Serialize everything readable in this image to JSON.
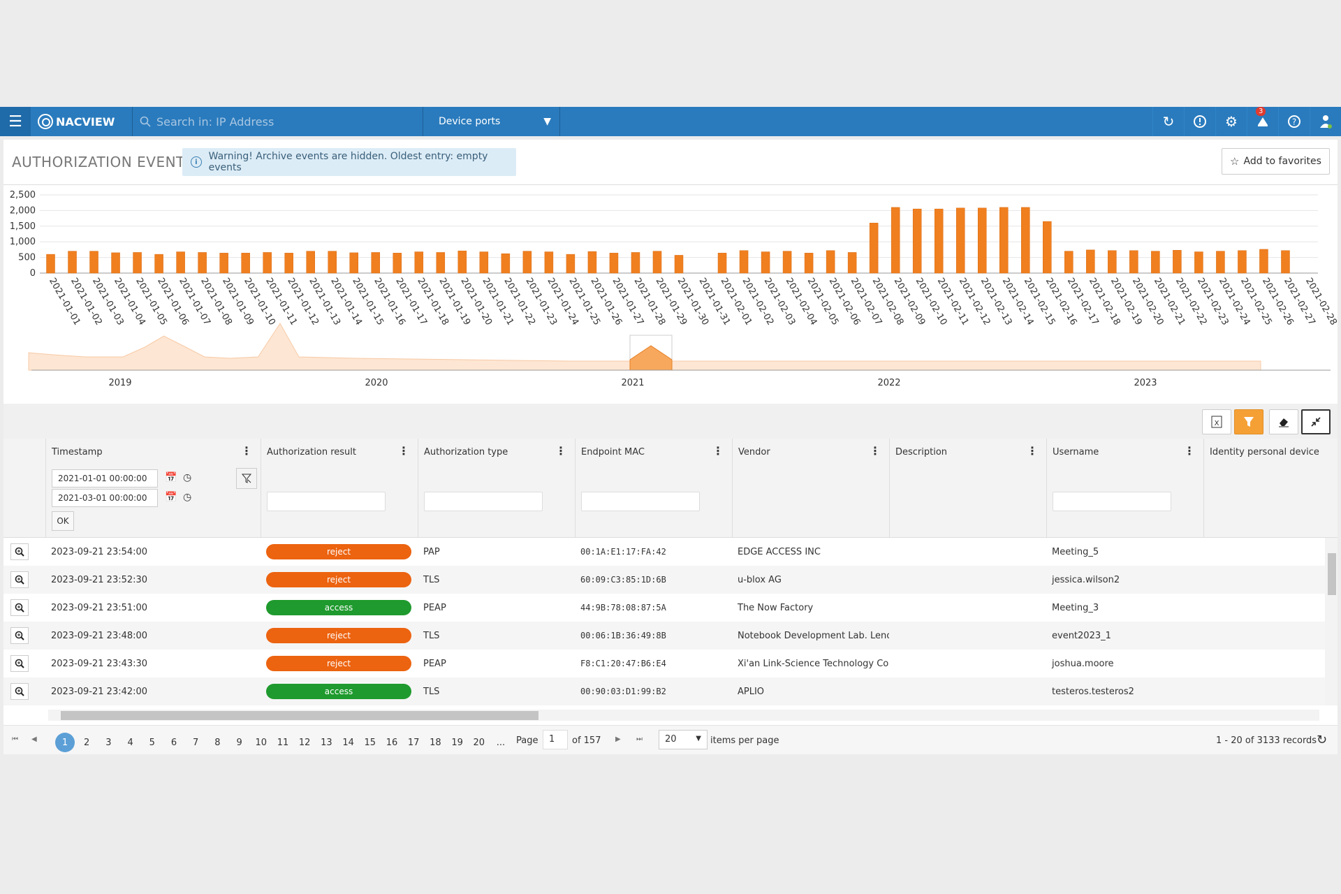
{
  "topbar": {
    "brand": "NACVIEW",
    "search_placeholder": "Search in: IP Address",
    "select_value": "Device ports",
    "notification_count": "3"
  },
  "page": {
    "title": "AUTHORIZATION EVENTS",
    "warning": "Warning! Archive events are hidden. Oldest entry: empty events",
    "favorites_label": "Add to favorites"
  },
  "chart_data": {
    "type": "bar",
    "categories": [
      "2021-01-01",
      "2021-01-02",
      "2021-01-03",
      "2021-01-04",
      "2021-01-05",
      "2021-01-06",
      "2021-01-07",
      "2021-01-08",
      "2021-01-09",
      "2021-01-10",
      "2021-01-11",
      "2021-01-12",
      "2021-01-13",
      "2021-01-14",
      "2021-01-15",
      "2021-01-16",
      "2021-01-17",
      "2021-01-18",
      "2021-01-19",
      "2021-01-20",
      "2021-01-21",
      "2021-01-22",
      "2021-01-23",
      "2021-01-24",
      "2021-01-25",
      "2021-01-26",
      "2021-01-27",
      "2021-01-28",
      "2021-01-29",
      "2021-01-30",
      "2021-01-31",
      "2021-02-01",
      "2021-02-02",
      "2021-02-03",
      "2021-02-04",
      "2021-02-05",
      "2021-02-06",
      "2021-02-07",
      "2021-02-08",
      "2021-02-09",
      "2021-02-10",
      "2021-02-11",
      "2021-02-12",
      "2021-02-13",
      "2021-02-14",
      "2021-02-15",
      "2021-02-16",
      "2021-02-17",
      "2021-02-18",
      "2021-02-19",
      "2021-02-20",
      "2021-02-21",
      "2021-02-22",
      "2021-02-23",
      "2021-02-24",
      "2021-02-25",
      "2021-02-26",
      "2021-02-27",
      "2021-02-28"
    ],
    "values": [
      600,
      700,
      700,
      650,
      660,
      600,
      680,
      660,
      640,
      640,
      660,
      640,
      700,
      700,
      650,
      660,
      640,
      680,
      660,
      710,
      680,
      620,
      700,
      680,
      600,
      690,
      640,
      660,
      700,
      570,
      0,
      640,
      720,
      680,
      700,
      640,
      720,
      660,
      1600,
      2100,
      2050,
      2050,
      2080,
      2080,
      2100,
      2100,
      1650,
      700,
      740,
      720,
      720,
      700,
      730,
      680,
      700,
      720,
      760,
      720,
      0
    ],
    "ylim": [
      0,
      2500
    ],
    "yticks": [
      "0",
      "500",
      "1,000",
      "1,500",
      "2,000",
      "2,500"
    ],
    "navigator_labels": [
      "2019",
      "2020",
      "2021",
      "2022",
      "2023"
    ],
    "color": "#f07f1f"
  },
  "grid": {
    "columns": [
      "Timestamp",
      "Authorization result",
      "Authorization type",
      "Endpoint MAC",
      "Vendor",
      "Description",
      "Username",
      "Identity personal device"
    ],
    "date_from": "2021-01-01 00:00:00",
    "date_to": "2021-03-01 00:00:00",
    "ok_label": "OK",
    "rows": [
      {
        "ts": "2023-09-21 23:54:00",
        "result": "reject",
        "type": "PAP",
        "mac": "00:1A:E1:17:FA:42",
        "vendor": "EDGE ACCESS INC",
        "desc": "",
        "user": "Meeting_5"
      },
      {
        "ts": "2023-09-21 23:52:30",
        "result": "reject",
        "type": "TLS",
        "mac": "60:09:C3:85:1D:6B",
        "vendor": "u-blox AG",
        "desc": "",
        "user": "jessica.wilson2"
      },
      {
        "ts": "2023-09-21 23:51:00",
        "result": "access",
        "type": "PEAP",
        "mac": "44:9B:78:08:87:5A",
        "vendor": "The Now Factory",
        "desc": "",
        "user": "Meeting_3"
      },
      {
        "ts": "2023-09-21 23:48:00",
        "result": "reject",
        "type": "TLS",
        "mac": "00:06:1B:36:49:8B",
        "vendor": "Notebook Development Lab. Leno...",
        "desc": "",
        "user": "event2023_1"
      },
      {
        "ts": "2023-09-21 23:43:30",
        "result": "reject",
        "type": "PEAP",
        "mac": "F8:C1:20:47:B6:E4",
        "vendor": "Xi'an Link-Science Technology Co.,...",
        "desc": "",
        "user": "joshua.moore"
      },
      {
        "ts": "2023-09-21 23:42:00",
        "result": "access",
        "type": "TLS",
        "mac": "00:90:03:D1:99:B2",
        "vendor": "APLIO",
        "desc": "",
        "user": "testeros.testeros2"
      }
    ]
  },
  "pager": {
    "pages": [
      "1",
      "2",
      "3",
      "4",
      "5",
      "6",
      "7",
      "8",
      "9",
      "10",
      "11",
      "12",
      "13",
      "14",
      "15",
      "16",
      "17",
      "18",
      "19",
      "20",
      "..."
    ],
    "page_label": "Page",
    "page_value": "1",
    "of_label": "of 157",
    "per_page": "20",
    "per_page_label": "items per page",
    "records": "1 - 20 of 3133 records"
  }
}
